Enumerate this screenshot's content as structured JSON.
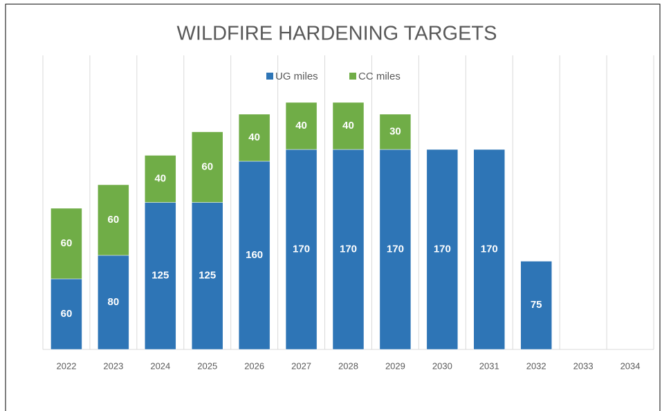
{
  "chart_data": {
    "type": "stacked_bar",
    "title": "WILDFIRE HARDENING TARGETS",
    "categories": [
      "2022",
      "2023",
      "2024",
      "2025",
      "2026",
      "2027",
      "2028",
      "2029",
      "2030",
      "2031",
      "2032",
      "2033",
      "2034"
    ],
    "series": [
      {
        "name": "UG miles",
        "color": "#2e75b6",
        "values": [
          60,
          80,
          125,
          125,
          160,
          170,
          170,
          170,
          170,
          170,
          75,
          null,
          null
        ]
      },
      {
        "name": "CC miles",
        "color": "#70ad47",
        "values": [
          60,
          60,
          40,
          60,
          40,
          40,
          40,
          30,
          null,
          null,
          null,
          null,
          null
        ]
      }
    ],
    "ylim": [
      0,
      250
    ],
    "legend": "top"
  }
}
